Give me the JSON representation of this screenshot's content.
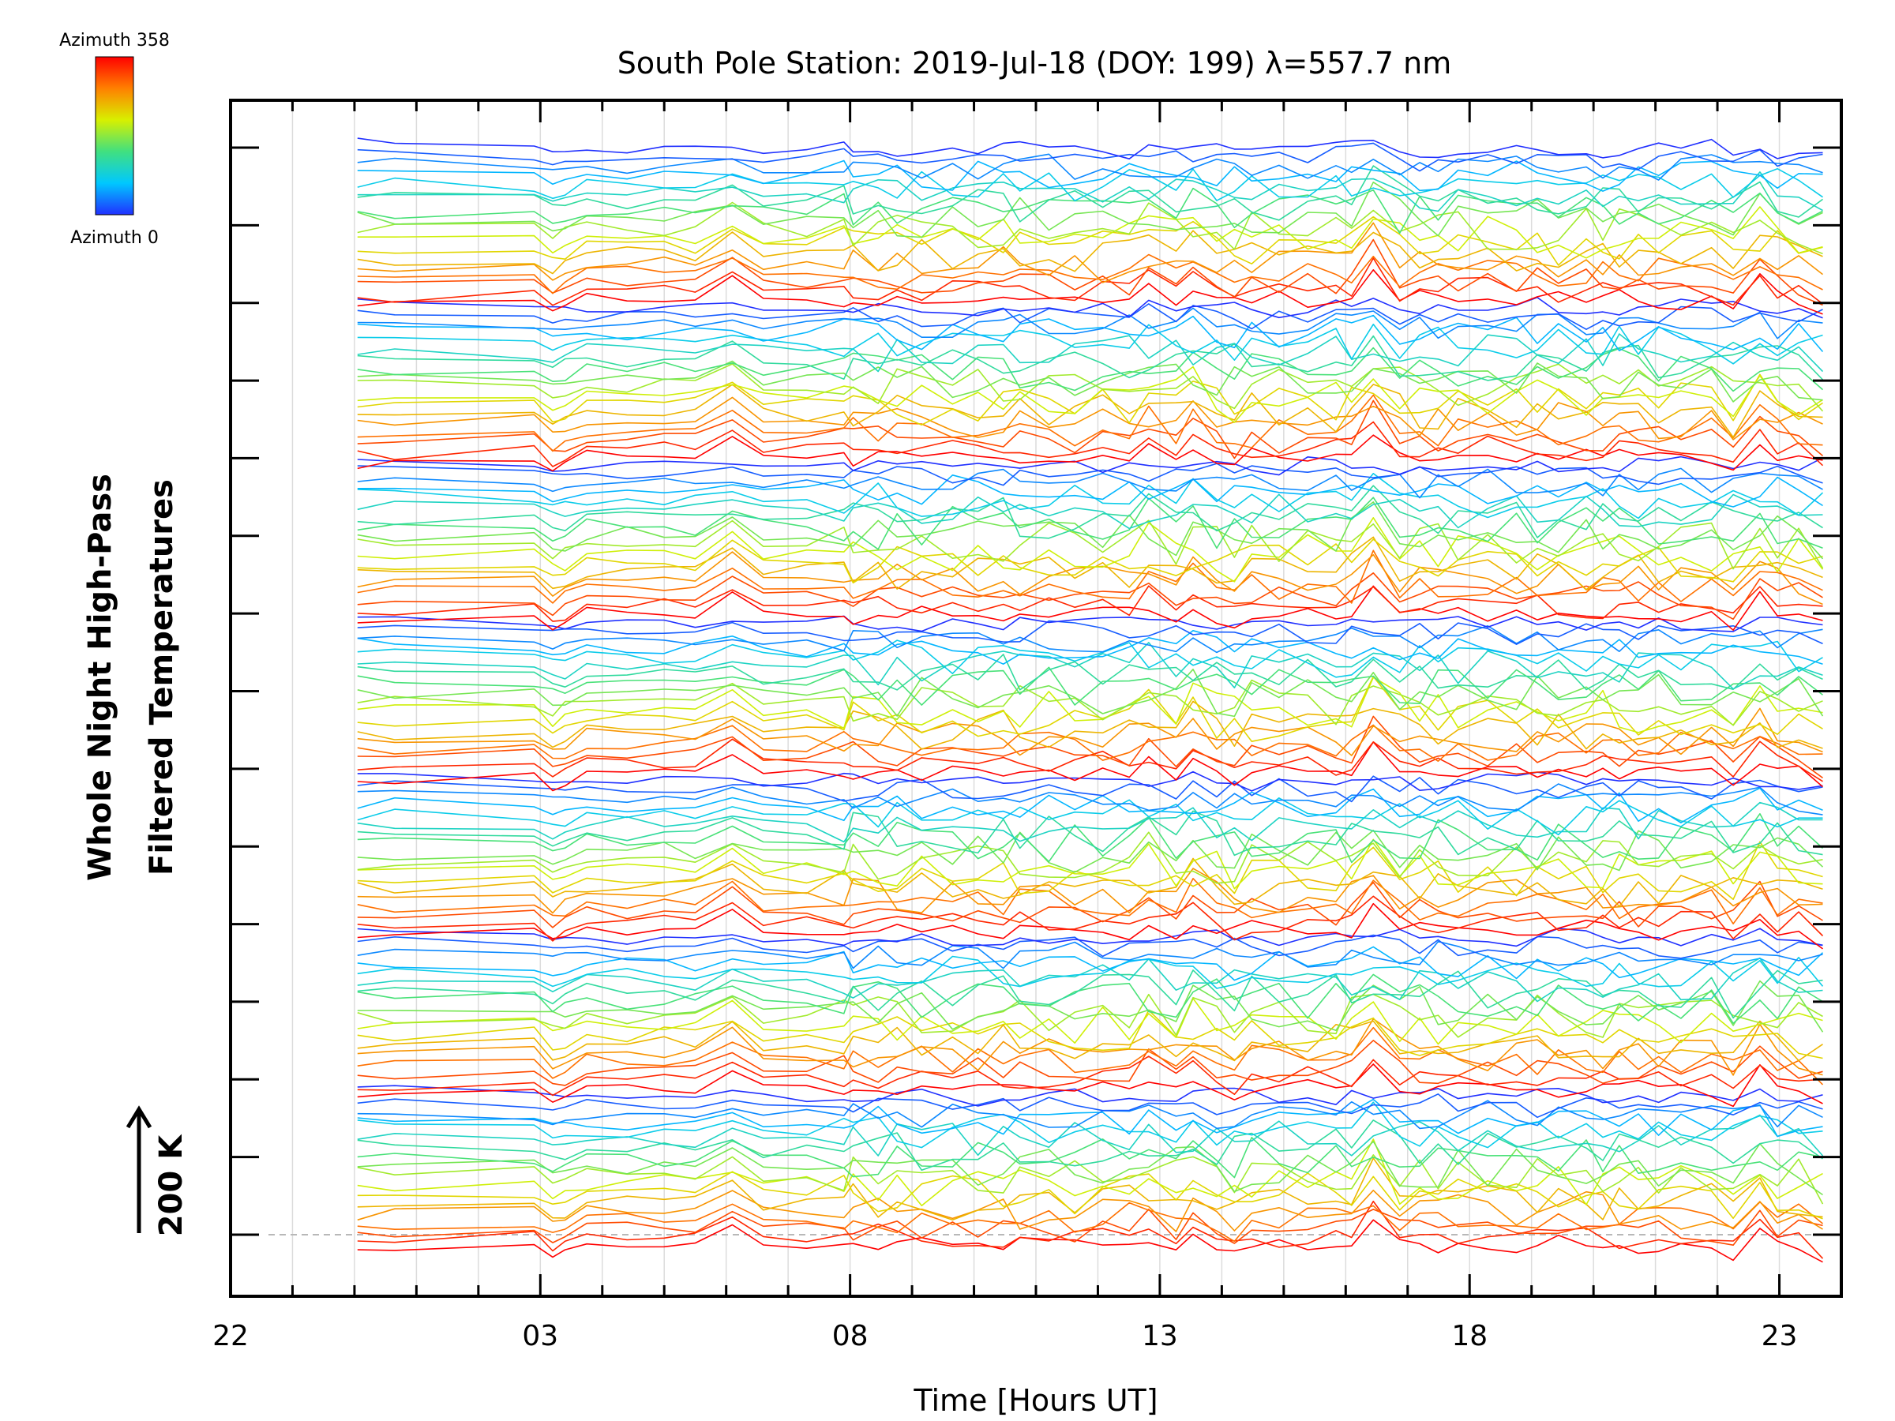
{
  "chart_data": {
    "type": "line",
    "title": "South Pole Station: 2019-Jul-18 (DOY: 199) λ=557.7 nm",
    "xlabel": "Time [Hours UT]",
    "ylabel": [
      "Whole Night High-Pass",
      "Filtered Temperatures"
    ],
    "x_tick_labels": [
      {
        "label": "22",
        "hour": 22
      },
      {
        "label": "03",
        "hour": 27
      },
      {
        "label": "08",
        "hour": 32
      },
      {
        "label": "13",
        "hour": 37
      },
      {
        "label": "18",
        "hour": 42
      },
      {
        "label": "23",
        "hour": 47
      }
    ],
    "xlim": [
      22,
      48
    ],
    "x_minor_step_hours": 1,
    "y_major_tick_count": 15,
    "scale_bar_label": "200 K",
    "series_count": 126,
    "color_scale": {
      "label_max": "Azimuth  358",
      "label_min": "Azimuth  0",
      "min": 0,
      "max": 358,
      "colormap": "rainbow (blue → cyan → green → yellow → red)",
      "stops": [
        "#2030ff",
        "#00c8ff",
        "#40e080",
        "#d8f000",
        "#ff8000",
        "#ff0000"
      ]
    },
    "grid": "vertical hourly lines",
    "dashed_baseline": true
  }
}
